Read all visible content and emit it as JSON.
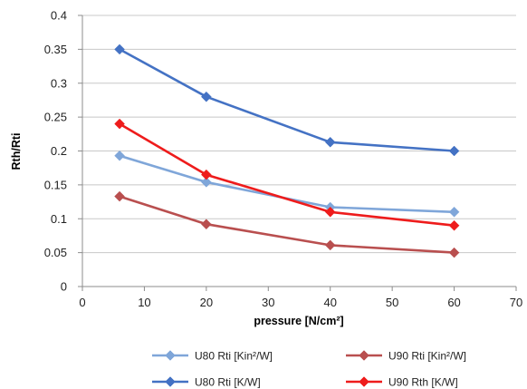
{
  "chart_data": {
    "type": "line",
    "title": "",
    "xlabel": "pressure [N/cm²]",
    "ylabel": "Rth/Rti",
    "xlim": [
      0,
      70
    ],
    "ylim": [
      0,
      0.4
    ],
    "x_ticks": [
      0,
      10,
      20,
      30,
      40,
      50,
      60,
      70
    ],
    "y_ticks": [
      0,
      0.05,
      0.1,
      0.15,
      0.2,
      0.25,
      0.3,
      0.35,
      0.4
    ],
    "x_tick_labels": [
      "0",
      "10",
      "20",
      "30",
      "40",
      "50",
      "60",
      "70"
    ],
    "y_tick_labels": [
      "0",
      "0.05",
      "0.1",
      "0.15",
      "0.2",
      "0.25",
      "0.3",
      "0.35",
      "0.4"
    ],
    "grid": "horizontal",
    "legend_position": "bottom",
    "series": [
      {
        "name": "U80 Rti [Kin²/W]",
        "color": "#7fa6d9",
        "x": [
          6,
          20,
          40,
          60
        ],
        "y": [
          0.193,
          0.154,
          0.117,
          0.11
        ]
      },
      {
        "name": "U90 Rti [Kin²/W]",
        "color": "#b94f4f",
        "x": [
          6,
          20,
          40,
          60
        ],
        "y": [
          0.133,
          0.092,
          0.061,
          0.05
        ]
      },
      {
        "name": "U80 Rti [K/W]",
        "color": "#4472c4",
        "x": [
          6,
          20,
          40,
          60
        ],
        "y": [
          0.35,
          0.28,
          0.213,
          0.2
        ]
      },
      {
        "name": "U90 Rth [K/W]",
        "color": "#ee1c1c",
        "x": [
          6,
          20,
          40,
          60
        ],
        "y": [
          0.24,
          0.165,
          0.11,
          0.09
        ]
      }
    ]
  }
}
